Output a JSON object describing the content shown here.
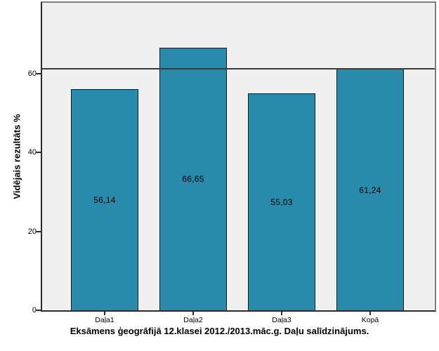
{
  "chart_data": {
    "type": "bar",
    "title": "Eksāmens ģeogrāfijā 12.klasei 2012./2013.māc.g. Daļu salīdzinājums.",
    "title_position": "bottom",
    "xlabel": "",
    "ylabel": "Vidējais rezultāts %",
    "categories": [
      "Daļa1",
      "Daļa2",
      "Daļa3",
      "Kopā"
    ],
    "values": [
      56.14,
      66.65,
      55.03,
      61.24
    ],
    "value_labels": [
      "56,14",
      "66,65",
      "55,03",
      "61,24"
    ],
    "yticks": [
      0,
      20,
      40,
      60
    ],
    "ytick_labels": [
      "0",
      "20",
      "40",
      "60"
    ],
    "ylim": [
      0,
      78
    ],
    "reference_line": 61.24,
    "grid": false,
    "legend": "none",
    "colors": {
      "bar_fill": "#298BAB",
      "bar_border": "#1A1A1A",
      "plot_background": "#F0F0F0",
      "figure_background": "#FFFFFF",
      "reference_line": "#3A3A3A",
      "axis_line": "#2B2B2B",
      "frame_line": "#7F7F7F",
      "text": "#000000"
    }
  }
}
